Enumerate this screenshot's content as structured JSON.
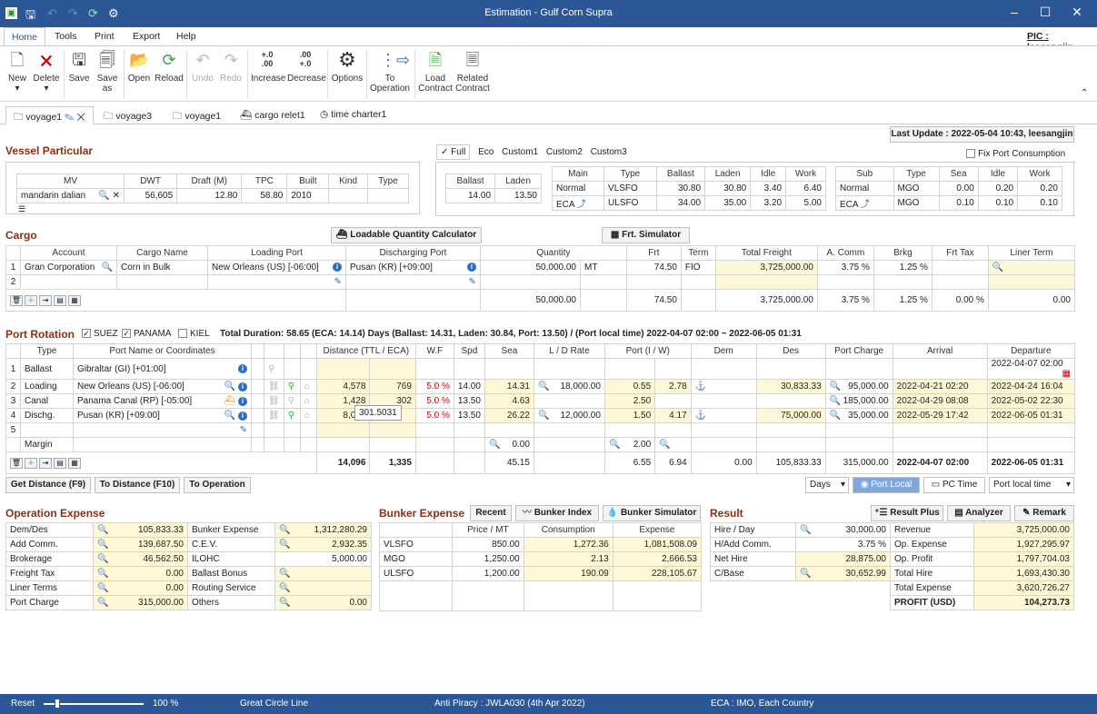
{
  "window": {
    "title": "Estimation - Gulf Corn Supra"
  },
  "menu": {
    "home": "Home",
    "tools": "Tools",
    "print": "Print",
    "export": "Export",
    "help": "Help",
    "pic": "PIC : leesangjin"
  },
  "ribbon": {
    "new": "New",
    "delete": "Delete",
    "save": "Save",
    "save_as_1": "Save",
    "save_as_2": "as",
    "open": "Open",
    "reload": "Reload",
    "undo": "Undo",
    "redo": "Redo",
    "increase": "Increase",
    "decrease": "Decrease",
    "options": "Options",
    "to_op_1": "To",
    "to_op_2": "Operation",
    "load_1": "Load",
    "load_2": "Contract",
    "related_1": "Related",
    "related_2": "Contract",
    "inc_glyph_1": "+.0",
    "inc_glyph_2": ".00",
    "dec_glyph_1": ".00",
    "dec_glyph_2": "+.0"
  },
  "tabs": [
    "voyage1",
    "voyage3",
    "voyage1",
    "cargo relet1",
    "time charter1"
  ],
  "last_update": "Last Update : 2022-05-04 10:43, leesangjin",
  "vessel": {
    "title": "Vessel Particular",
    "headers": [
      "MV",
      "DWT",
      "Draft (M)",
      "TPC",
      "Built",
      "Kind",
      "Type"
    ],
    "row": [
      "mandarin dalian",
      "56,605",
      "12.80",
      "58.80",
      "2010",
      "",
      ""
    ]
  },
  "consumption": {
    "tabs": [
      "Full",
      "Eco",
      "Custom1",
      "Custom2",
      "Custom3"
    ],
    "fix_port": "Fix Port Consumption",
    "speed_headers": [
      "Ballast",
      "Laden"
    ],
    "speed_row": [
      "14.00",
      "13.50"
    ],
    "main_headers": [
      "Main",
      "Type",
      "Ballast",
      "Laden",
      "Idle",
      "Work"
    ],
    "main_rows": [
      [
        "Normal",
        "VLSFO",
        "30.80",
        "30.80",
        "3.40",
        "6.40"
      ],
      [
        "ECA",
        "ULSFO",
        "34.00",
        "35.00",
        "3.20",
        "5.00"
      ]
    ],
    "sub_headers": [
      "Sub",
      "Type",
      "Sea",
      "Idle",
      "Work"
    ],
    "sub_rows": [
      [
        "Normal",
        "MGO",
        "0.00",
        "0.20",
        "0.20"
      ],
      [
        "ECA",
        "MGO",
        "0.10",
        "0.10",
        "0.10"
      ]
    ]
  },
  "cargo": {
    "title": "Cargo",
    "loadable_btn": "Loadable Quantity Calculator",
    "frt_btn": "Frt. Simulator",
    "headers": [
      "Account",
      "Cargo Name",
      "Loading Port",
      "Discharging Port",
      "Quantity",
      "Frt",
      "Term",
      "Total Freight",
      "A. Comm",
      "Brkg",
      "Frt Tax",
      "Liner Term"
    ],
    "rows": [
      [
        "1",
        "Gran Corporation",
        "Corn in Bulk",
        "New Orleans (US) [-06:00]",
        "Pusan (KR) [+09:00]",
        "50,000.00",
        "MT",
        "74.50",
        "FIO",
        "3,725,000.00",
        "3.75 %",
        "1.25 %",
        "",
        ""
      ],
      [
        "2",
        "",
        "",
        "",
        "",
        "",
        "",
        "",
        "",
        "",
        "",
        "",
        "",
        ""
      ]
    ],
    "totals": [
      "50,000.00",
      "74.50",
      "3,725,000.00",
      "3.75 %",
      "1.25 %",
      "0.00 %",
      "0.00"
    ]
  },
  "port": {
    "title": "Port Rotation",
    "suez": "SUEZ",
    "panama": "PANAMA",
    "kiel": "KIEL",
    "summary": "Total Duration: 58.65 (ECA: 14.14) Days (Ballast: 14.31, Laden: 30.84, Port: 13.50) / (Port local time) 2022-04-07 02:00 ~ 2022-06-05 01:31",
    "headers": [
      "Type",
      "Port Name or Coordinates",
      "Distance (TTL / ECA)",
      "W.F",
      "Spd",
      "Sea",
      "L / D Rate",
      "Port (I / W)",
      "Dem",
      "Des",
      "Port Charge",
      "Arrival",
      "Departure"
    ],
    "rows": [
      [
        "1",
        "Ballast",
        "Gibraltar (GI) [+01:00]",
        "",
        "",
        "",
        "",
        "",
        "",
        "",
        "",
        "",
        "",
        "",
        "",
        "",
        "2022-04-07 02:00"
      ],
      [
        "2",
        "Loading",
        "New Orleans (US) [-06:00]",
        "4,578",
        "769",
        "5.0 %",
        "14.00",
        "14.31",
        "18,000.00",
        "0.55",
        "2.78",
        "",
        "30,833.33",
        "95,000.00",
        "2022-04-21 02:20",
        "2022-04-24 16:04"
      ],
      [
        "3",
        "Canal",
        "Panama Canal (RP) [-05:00]",
        "1,428",
        "302",
        "5.0 %",
        "13.50",
        "4.63",
        "",
        "2.50",
        "",
        "",
        "",
        "185,000.00",
        "2022-04-29 08:08",
        "2022-05-02 22:30"
      ],
      [
        "4",
        "Dischg.",
        "Pusan (KR) [+09:00]",
        "8,090",
        "",
        "5.0 %",
        "13.50",
        "26.22",
        "12,000.00",
        "1.50",
        "4.17",
        "",
        "75,000.00",
        "35,000.00",
        "2022-05-29 17:42",
        "2022-06-05 01:31"
      ],
      [
        "5",
        "",
        "",
        "",
        "",
        "",
        "",
        "",
        "",
        "",
        "",
        "",
        "",
        "",
        "",
        ""
      ]
    ],
    "margin_label": "Margin",
    "margin_sea": "0.00",
    "margin_port": "2.00",
    "tooltip": "301.5031",
    "totals": [
      "14,096",
      "1,335",
      "45.15",
      "6.55",
      "6.94",
      "0.00",
      "105,833.33",
      "315,000.00",
      "2022-04-07 02:00",
      "2022-06-05 01:31"
    ],
    "btn_get": "Get Distance (F9)",
    "btn_to": "To Distance (F10)",
    "btn_op": "To Operation",
    "days": "Days",
    "port_local": "Port Local",
    "pc_time": "PC Time",
    "port_local_time": "Port local time"
  },
  "opex": {
    "title": "Operation Expense",
    "rows": [
      [
        "Dem/Des",
        "105,833.33",
        "Bunker Expense",
        "1,312,280.29"
      ],
      [
        "Add Comm.",
        "139,687.50",
        "C.E.V.",
        "2,932.35"
      ],
      [
        "Brokerage",
        "46,562.50",
        "ILOHC",
        "5,000.00"
      ],
      [
        "Freight Tax",
        "0.00",
        "Ballast Bonus",
        ""
      ],
      [
        "Liner Terms",
        "0.00",
        "Routing Service",
        ""
      ],
      [
        "Port Charge",
        "315,000.00",
        "Others",
        "0.00"
      ]
    ]
  },
  "bunker": {
    "title": "Bunker Expense",
    "recent": "Recent",
    "index": "Bunker Index",
    "sim": "Bunker Simulator",
    "headers": [
      "Price / MT",
      "Consumption",
      "Expense"
    ],
    "rows": [
      [
        "VLSFO",
        "850.00",
        "1,272.36",
        "1,081,508.09"
      ],
      [
        "MGO",
        "1,250.00",
        "2.13",
        "2,666.53"
      ],
      [
        "ULSFO",
        "1,200.00",
        "190.09",
        "228,105.67"
      ]
    ]
  },
  "result": {
    "title": "Result",
    "plus": "Result Plus",
    "analyzer": "Analyzer",
    "remark": "Remark",
    "left": [
      [
        "Hire / Day",
        "30,000.00"
      ],
      [
        "H/Add Comm.",
        "3.75 %"
      ],
      [
        "Net Hire",
        "28,875.00"
      ],
      [
        "C/Base",
        "30,652.99"
      ]
    ],
    "right": [
      [
        "Revenue",
        "3,725,000.00"
      ],
      [
        "Op. Expense",
        "1,927,295.97"
      ],
      [
        "Op. Profit",
        "1,797,704.03"
      ],
      [
        "Total Hire",
        "1,693,430.30"
      ],
      [
        "Total Expense",
        "3,620,726.27"
      ],
      [
        "PROFIT (USD)",
        "104,273.73"
      ]
    ]
  },
  "status": {
    "reset": "Reset",
    "zoom": "100 %",
    "route": "Great Circle Line",
    "anti": "Anti Piracy : JWLA030 (4th Apr 2022)",
    "eca": "ECA : IMO, Each Country"
  }
}
